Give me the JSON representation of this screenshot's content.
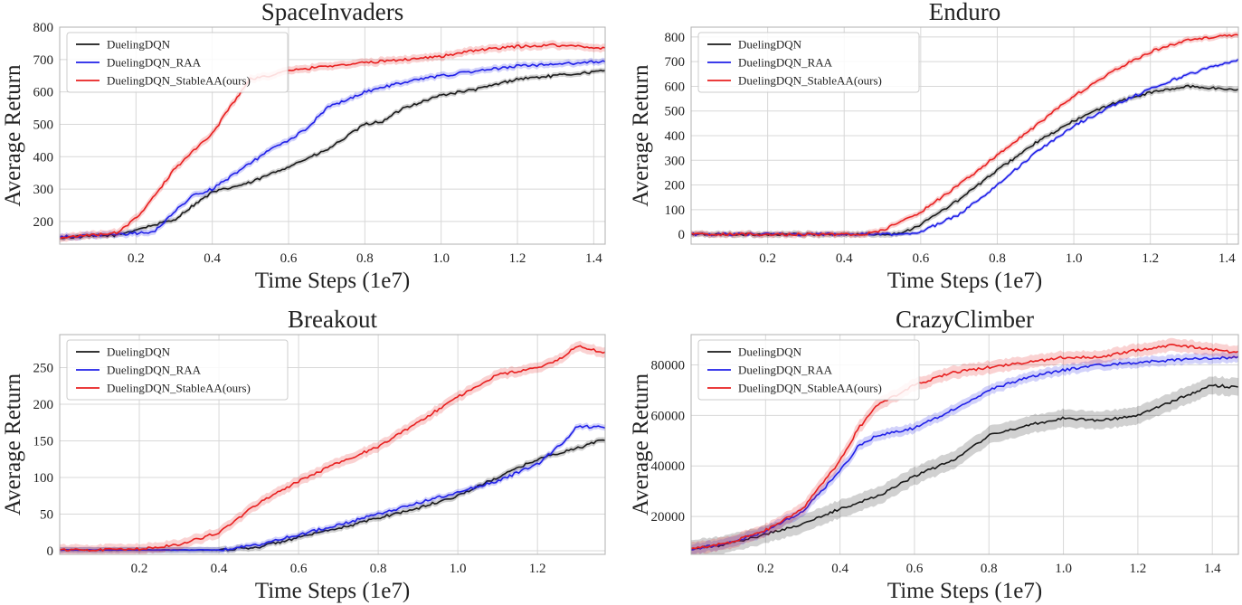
{
  "colors": {
    "DuelingDQN": "#1a1a1a",
    "DuelingDQN_RAA": "#2020e8",
    "DuelingDQN_StableAA(ours)": "#e82020",
    "grid": "#d8d8d8",
    "frame": "#b0b0b0"
  },
  "chart_data": [
    {
      "type": "line",
      "title": "SpaceInvaders",
      "xlabel": "Time Steps (1e7)",
      "ylabel": "Average Return",
      "xlim": [
        0,
        1.43
      ],
      "ylim": [
        130,
        800
      ],
      "xticks": [
        0.2,
        0.4,
        0.6,
        0.8,
        1.0,
        1.2,
        1.4
      ],
      "yticks": [
        200,
        300,
        400,
        500,
        600,
        700,
        800
      ],
      "legend": "top-left",
      "grid": true,
      "series": [
        {
          "name": "DuelingDQN",
          "band": 8,
          "points": [
            [
              0,
              150
            ],
            [
              0.15,
              158
            ],
            [
              0.2,
              175
            ],
            [
              0.25,
              190
            ],
            [
              0.3,
              205
            ],
            [
              0.35,
              250
            ],
            [
              0.4,
              290
            ],
            [
              0.5,
              320
            ],
            [
              0.6,
              370
            ],
            [
              0.7,
              420
            ],
            [
              0.8,
              500
            ],
            [
              0.85,
              510
            ],
            [
              0.9,
              550
            ],
            [
              1.0,
              590
            ],
            [
              1.1,
              610
            ],
            [
              1.2,
              640
            ],
            [
              1.3,
              650
            ],
            [
              1.43,
              665
            ]
          ]
        },
        {
          "name": "DuelingDQN_RAA",
          "band": 10,
          "points": [
            [
              0,
              152
            ],
            [
              0.15,
              160
            ],
            [
              0.22,
              165
            ],
            [
              0.25,
              170
            ],
            [
              0.3,
              230
            ],
            [
              0.35,
              280
            ],
            [
              0.4,
              300
            ],
            [
              0.45,
              340
            ],
            [
              0.5,
              380
            ],
            [
              0.55,
              420
            ],
            [
              0.6,
              450
            ],
            [
              0.65,
              490
            ],
            [
              0.7,
              550
            ],
            [
              0.8,
              600
            ],
            [
              0.9,
              630
            ],
            [
              1.0,
              650
            ],
            [
              1.1,
              665
            ],
            [
              1.2,
              680
            ],
            [
              1.3,
              685
            ],
            [
              1.43,
              695
            ]
          ]
        },
        {
          "name": "DuelingDQN_StableAA(ours)",
          "band": 12,
          "points": [
            [
              0,
              150
            ],
            [
              0.15,
              165
            ],
            [
              0.2,
              210
            ],
            [
              0.25,
              280
            ],
            [
              0.3,
              360
            ],
            [
              0.35,
              420
            ],
            [
              0.4,
              470
            ],
            [
              0.45,
              560
            ],
            [
              0.5,
              640
            ],
            [
              0.55,
              650
            ],
            [
              0.6,
              665
            ],
            [
              0.7,
              680
            ],
            [
              0.8,
              690
            ],
            [
              0.9,
              700
            ],
            [
              1.0,
              710
            ],
            [
              1.1,
              730
            ],
            [
              1.2,
              740
            ],
            [
              1.3,
              745
            ],
            [
              1.43,
              735
            ]
          ]
        }
      ]
    },
    {
      "type": "line",
      "title": "Enduro",
      "xlabel": "Time Steps (1e7)",
      "ylabel": "Average Return",
      "xlim": [
        0,
        1.43
      ],
      "ylim": [
        -40,
        840
      ],
      "xticks": [
        0.2,
        0.4,
        0.6,
        0.8,
        1.0,
        1.2,
        1.4
      ],
      "yticks": [
        0,
        100,
        200,
        300,
        400,
        500,
        600,
        700,
        800
      ],
      "legend": "top-left",
      "grid": true,
      "series": [
        {
          "name": "DuelingDQN",
          "band": 12,
          "points": [
            [
              0,
              0
            ],
            [
              0.5,
              0
            ],
            [
              0.55,
              5
            ],
            [
              0.6,
              40
            ],
            [
              0.7,
              140
            ],
            [
              0.8,
              260
            ],
            [
              0.9,
              370
            ],
            [
              1.0,
              460
            ],
            [
              1.1,
              530
            ],
            [
              1.2,
              575
            ],
            [
              1.3,
              600
            ],
            [
              1.43,
              585
            ]
          ]
        },
        {
          "name": "DuelingDQN_RAA",
          "band": 8,
          "points": [
            [
              0,
              0
            ],
            [
              0.55,
              0
            ],
            [
              0.6,
              10
            ],
            [
              0.7,
              80
            ],
            [
              0.8,
              200
            ],
            [
              0.9,
              330
            ],
            [
              1.0,
              440
            ],
            [
              1.1,
              520
            ],
            [
              1.2,
              590
            ],
            [
              1.3,
              650
            ],
            [
              1.43,
              710
            ]
          ]
        },
        {
          "name": "DuelingDQN_StableAA(ours)",
          "band": 12,
          "points": [
            [
              0,
              0
            ],
            [
              0.45,
              0
            ],
            [
              0.5,
              15
            ],
            [
              0.6,
              90
            ],
            [
              0.7,
              200
            ],
            [
              0.8,
              320
            ],
            [
              0.9,
              440
            ],
            [
              1.0,
              560
            ],
            [
              1.1,
              660
            ],
            [
              1.2,
              740
            ],
            [
              1.3,
              790
            ],
            [
              1.43,
              810
            ]
          ]
        }
      ]
    },
    {
      "type": "line",
      "title": "Breakout",
      "xlabel": "Time Steps (1e7)",
      "ylabel": "Average Return",
      "xlim": [
        0,
        1.37
      ],
      "ylim": [
        -5,
        295
      ],
      "xticks": [
        0.2,
        0.4,
        0.6,
        0.8,
        1.0,
        1.2
      ],
      "yticks": [
        0,
        50,
        100,
        150,
        200,
        250
      ],
      "legend": "top-left",
      "grid": true,
      "series": [
        {
          "name": "DuelingDQN",
          "band": 4,
          "points": [
            [
              0,
              1
            ],
            [
              0.4,
              1
            ],
            [
              0.5,
              5
            ],
            [
              0.6,
              18
            ],
            [
              0.7,
              30
            ],
            [
              0.8,
              45
            ],
            [
              0.9,
              58
            ],
            [
              1.0,
              75
            ],
            [
              1.1,
              100
            ],
            [
              1.2,
              125
            ],
            [
              1.3,
              140
            ],
            [
              1.37,
              152
            ]
          ]
        },
        {
          "name": "DuelingDQN_RAA",
          "band": 4,
          "points": [
            [
              0,
              1
            ],
            [
              0.4,
              1
            ],
            [
              0.5,
              8
            ],
            [
              0.6,
              22
            ],
            [
              0.7,
              35
            ],
            [
              0.8,
              50
            ],
            [
              0.9,
              65
            ],
            [
              1.0,
              80
            ],
            [
              1.1,
              95
            ],
            [
              1.2,
              118
            ],
            [
              1.27,
              150
            ],
            [
              1.3,
              170
            ],
            [
              1.37,
              168
            ]
          ]
        },
        {
          "name": "DuelingDQN_StableAA(ours)",
          "band": 7,
          "points": [
            [
              0,
              1
            ],
            [
              0.2,
              2
            ],
            [
              0.3,
              8
            ],
            [
              0.4,
              25
            ],
            [
              0.45,
              45
            ],
            [
              0.5,
              65
            ],
            [
              0.6,
              95
            ],
            [
              0.7,
              120
            ],
            [
              0.8,
              142
            ],
            [
              0.9,
              175
            ],
            [
              1.0,
              210
            ],
            [
              1.05,
              225
            ],
            [
              1.1,
              240
            ],
            [
              1.2,
              250
            ],
            [
              1.25,
              260
            ],
            [
              1.3,
              280
            ],
            [
              1.37,
              270
            ]
          ]
        }
      ]
    },
    {
      "type": "line",
      "title": "CrazyClimber",
      "xlabel": "Time Steps (1e7)",
      "ylabel": "Average Return",
      "xlim": [
        0,
        1.47
      ],
      "ylim": [
        5000,
        92000
      ],
      "xticks": [
        0.2,
        0.4,
        0.6,
        0.8,
        1.0,
        1.2,
        1.4
      ],
      "yticks": [
        20000,
        40000,
        60000,
        80000
      ],
      "legend": "top-left",
      "grid": true,
      "series": [
        {
          "name": "DuelingDQN",
          "band": 3500,
          "points": [
            [
              0,
              7000
            ],
            [
              0.1,
              9000
            ],
            [
              0.2,
              13000
            ],
            [
              0.3,
              17000
            ],
            [
              0.4,
              23000
            ],
            [
              0.5,
              28000
            ],
            [
              0.6,
              36000
            ],
            [
              0.7,
              42000
            ],
            [
              0.8,
              52000
            ],
            [
              0.9,
              56000
            ],
            [
              1.0,
              59000
            ],
            [
              1.1,
              58000
            ],
            [
              1.2,
              60000
            ],
            [
              1.3,
              66000
            ],
            [
              1.4,
              72000
            ],
            [
              1.47,
              71000
            ]
          ]
        },
        {
          "name": "DuelingDQN_RAA",
          "band": 2000,
          "points": [
            [
              0,
              7000
            ],
            [
              0.1,
              9500
            ],
            [
              0.2,
              14000
            ],
            [
              0.3,
              22000
            ],
            [
              0.4,
              38000
            ],
            [
              0.45,
              48000
            ],
            [
              0.5,
              52000
            ],
            [
              0.6,
              55000
            ],
            [
              0.7,
              62000
            ],
            [
              0.8,
              70000
            ],
            [
              0.9,
              75000
            ],
            [
              1.0,
              78000
            ],
            [
              1.1,
              80000
            ],
            [
              1.2,
              81000
            ],
            [
              1.3,
              82000
            ],
            [
              1.47,
              83000
            ]
          ]
        },
        {
          "name": "DuelingDQN_StableAA(ours)",
          "band": 2500,
          "points": [
            [
              0,
              7000
            ],
            [
              0.1,
              9500
            ],
            [
              0.2,
              14500
            ],
            [
              0.3,
              23000
            ],
            [
              0.4,
              42000
            ],
            [
              0.45,
              55000
            ],
            [
              0.5,
              64000
            ],
            [
              0.6,
              72000
            ],
            [
              0.7,
              77000
            ],
            [
              0.8,
              79000
            ],
            [
              0.9,
              81000
            ],
            [
              1.0,
              83000
            ],
            [
              1.1,
              83000
            ],
            [
              1.2,
              86000
            ],
            [
              1.3,
              88000
            ],
            [
              1.4,
              86000
            ],
            [
              1.47,
              85000
            ]
          ]
        }
      ]
    }
  ]
}
